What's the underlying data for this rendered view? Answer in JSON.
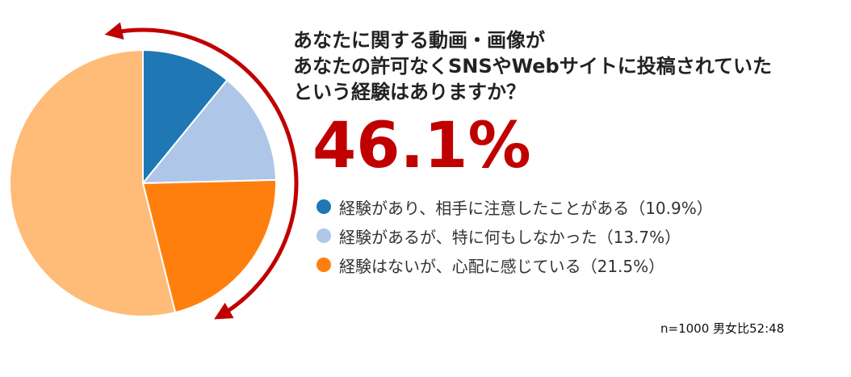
{
  "chart_data": {
    "type": "pie",
    "title_lines": [
      "あなたに関する動画・画像が",
      "あなたの許可なくSNSやWebサイトに投稿されていた",
      "という経験はありますか？"
    ],
    "headline_value": "46.1%",
    "slices": [
      {
        "label": "経験があり、相手に注意したことがある（10.9%）",
        "value": 10.9,
        "color": "#1f77b4"
      },
      {
        "label": "経験があるが、特に何もしなかった（13.7%）",
        "value": 13.7,
        "color": "#aec7e8"
      },
      {
        "label": "経験はないが、心配に感じている（21.5%）",
        "value": 21.5,
        "color": "#ff7f0e"
      },
      {
        "label": "",
        "value": 53.9,
        "color": "#ffbb78"
      }
    ],
    "legend_placement": "right",
    "footnote": "n=1000 男女比52:48"
  },
  "colors": {
    "accent": "#c00000",
    "title_text": "#222222"
  }
}
